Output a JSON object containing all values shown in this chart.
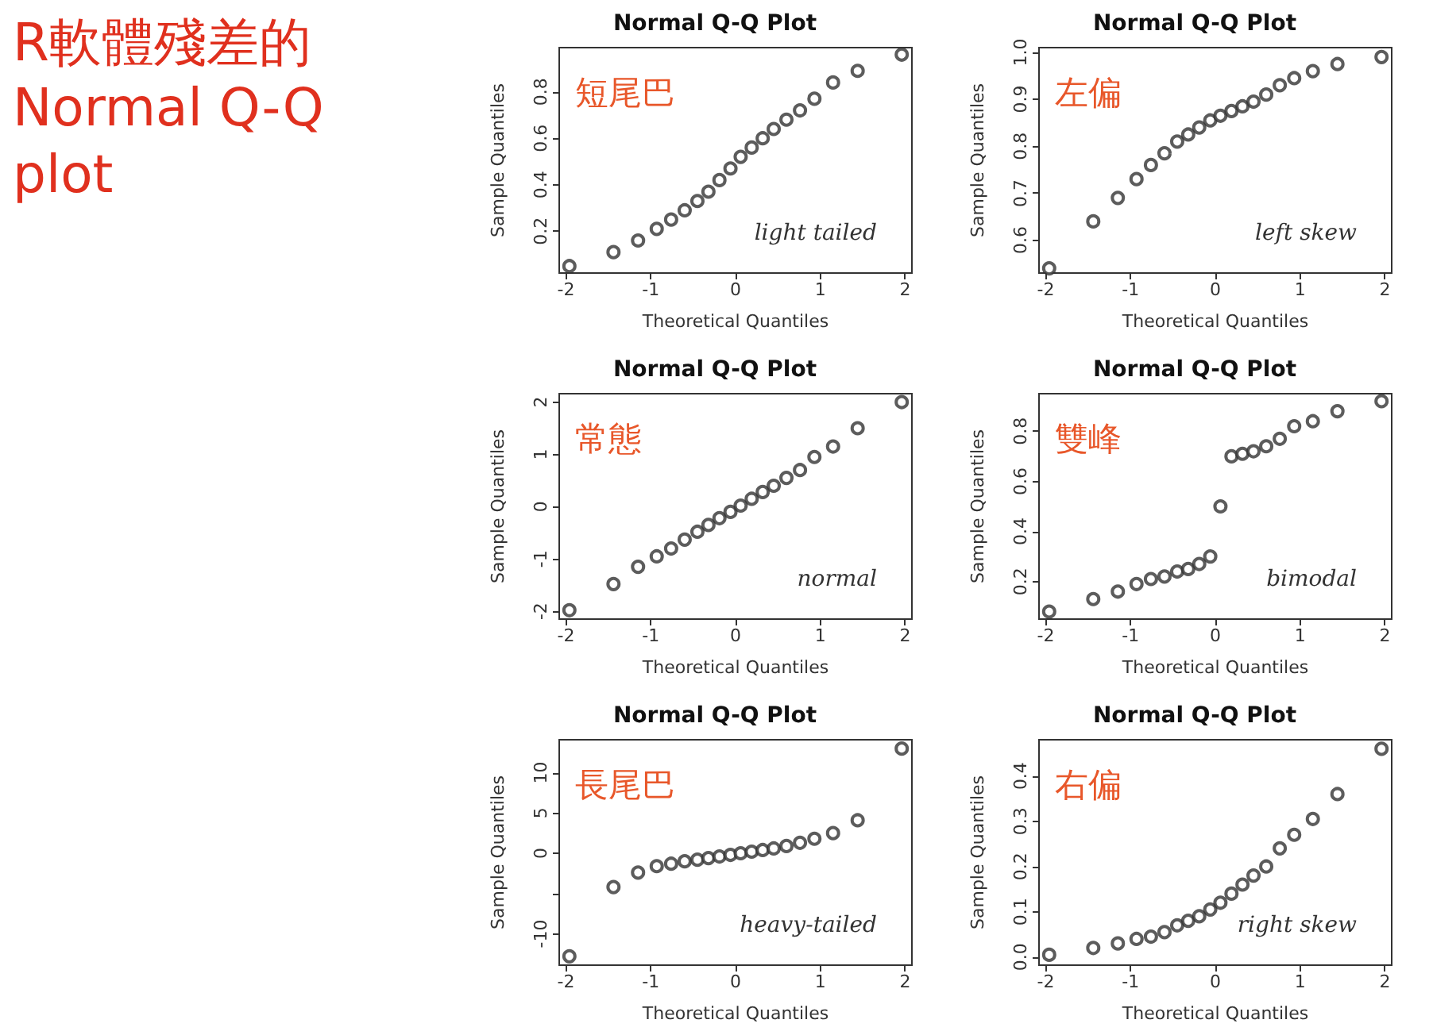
{
  "chart_data": [
    {
      "type": "other",
      "title": "R軟體殘差的 Normal Q-Q plot"
    },
    {
      "type": "scatter",
      "title": "Normal Q-Q Plot",
      "xlabel": "Theoretical Quantiles",
      "ylabel": "Sample Quantiles",
      "annotations": [
        "短尾巴",
        "light tailed"
      ],
      "marker": "circle",
      "xlim": [
        -2.08,
        2.08
      ],
      "xticks": [
        -2,
        -1,
        0,
        1,
        2
      ],
      "ylim": [
        0.02,
        0.99
      ],
      "yticks": [
        0.2,
        0.4,
        0.6,
        0.8
      ],
      "x": [
        -1.96,
        -1.44,
        -1.15,
        -0.93,
        -0.76,
        -0.6,
        -0.45,
        -0.32,
        -0.19,
        -0.06,
        0.06,
        0.19,
        0.32,
        0.45,
        0.6,
        0.76,
        0.93,
        1.15,
        1.44,
        1.96
      ],
      "series": [
        {
          "color": "#333333",
          "values": [
            0.05,
            0.11,
            0.16,
            0.21,
            0.25,
            0.29,
            0.33,
            0.37,
            0.42,
            0.47,
            0.52,
            0.56,
            0.6,
            0.64,
            0.68,
            0.72,
            0.77,
            0.84,
            0.89,
            0.96
          ]
        }
      ]
    },
    {
      "type": "scatter",
      "title": "Normal Q-Q Plot",
      "xlabel": "Theoretical Quantiles",
      "ylabel": "Sample Quantiles",
      "annotations": [
        "左偏",
        "left skew"
      ],
      "marker": "circle",
      "xlim": [
        -2.08,
        2.08
      ],
      "xticks": [
        -2,
        -1,
        0,
        1,
        2
      ],
      "ylim": [
        0.53,
        1.01
      ],
      "yticks": [
        0.6,
        0.7,
        0.8,
        0.9,
        {
          "value": 1,
          "label": "1.0"
        }
      ],
      "x": [
        -1.96,
        -1.44,
        -1.15,
        -0.93,
        -0.76,
        -0.6,
        -0.45,
        -0.32,
        -0.19,
        -0.06,
        0.06,
        0.19,
        0.32,
        0.45,
        0.6,
        0.76,
        0.93,
        1.15,
        1.44,
        1.96
      ],
      "series": [
        {
          "color": "#333333",
          "values": [
            0.54,
            0.64,
            0.69,
            0.73,
            0.76,
            0.785,
            0.81,
            0.825,
            0.84,
            0.855,
            0.865,
            0.875,
            0.885,
            0.895,
            0.91,
            0.93,
            0.945,
            0.96,
            0.975,
            0.99
          ]
        }
      ]
    },
    {
      "type": "scatter",
      "title": "Normal Q-Q Plot",
      "xlabel": "Theoretical Quantiles",
      "ylabel": "Sample Quantiles",
      "annotations": [
        "常態",
        "normal"
      ],
      "marker": "circle",
      "xlim": [
        -2.08,
        2.08
      ],
      "xticks": [
        -2,
        -1,
        0,
        1,
        2
      ],
      "ylim": [
        -2.15,
        2.16
      ],
      "yticks": [
        -2,
        -1,
        0,
        1,
        2
      ],
      "x": [
        -1.96,
        -1.44,
        -1.15,
        -0.93,
        -0.76,
        -0.6,
        -0.45,
        -0.32,
        -0.19,
        -0.06,
        0.06,
        0.19,
        0.32,
        0.45,
        0.6,
        0.76,
        0.93,
        1.15,
        1.44,
        1.96
      ],
      "series": [
        {
          "color": "#333333",
          "values": [
            -1.98,
            -1.48,
            -1.15,
            -0.95,
            -0.8,
            -0.63,
            -0.48,
            -0.35,
            -0.22,
            -0.1,
            0.02,
            0.15,
            0.28,
            0.4,
            0.55,
            0.7,
            0.95,
            1.15,
            1.5,
            2
          ]
        }
      ]
    },
    {
      "type": "scatter",
      "title": "Normal Q-Q Plot",
      "xlabel": "Theoretical Quantiles",
      "ylabel": "Sample Quantiles",
      "annotations": [
        "雙峰",
        "bimodal"
      ],
      "marker": "circle",
      "xlim": [
        -2.08,
        2.08
      ],
      "xticks": [
        -2,
        -1,
        0,
        1,
        2
      ],
      "ylim": [
        0.05,
        0.95
      ],
      "yticks": [
        0.2,
        0.4,
        0.6,
        0.8
      ],
      "x": [
        -1.96,
        -1.44,
        -1.15,
        -0.93,
        -0.76,
        -0.6,
        -0.45,
        -0.32,
        -0.19,
        -0.06,
        0.06,
        0.19,
        0.32,
        0.45,
        0.6,
        0.76,
        0.93,
        1.15,
        1.44,
        1.96
      ],
      "series": [
        {
          "color": "#333333",
          "values": [
            0.08,
            0.13,
            0.16,
            0.19,
            0.21,
            0.22,
            0.24,
            0.25,
            0.27,
            0.3,
            0.5,
            0.7,
            0.71,
            0.72,
            0.74,
            0.77,
            0.82,
            0.84,
            0.88,
            0.92
          ]
        }
      ]
    },
    {
      "type": "scatter",
      "title": "Normal Q-Q Plot",
      "xlabel": "Theoretical Quantiles",
      "ylabel": "Sample Quantiles",
      "annotations": [
        "長尾巴",
        "heavy-tailed"
      ],
      "marker": "circle",
      "xlim": [
        -2.08,
        2.08
      ],
      "xticks": [
        -2,
        -1,
        0,
        1,
        2
      ],
      "ylim": [
        -13.9,
        14.1
      ],
      "yticks": [
        -10,
        {
          "value": -5,
          "label": null
        },
        0,
        5,
        10
      ],
      "x": [
        -1.96,
        -1.44,
        -1.15,
        -0.93,
        -0.76,
        -0.6,
        -0.45,
        -0.32,
        -0.19,
        -0.06,
        0.06,
        0.19,
        0.32,
        0.45,
        0.6,
        0.76,
        0.93,
        1.15,
        1.44,
        1.96
      ],
      "series": [
        {
          "color": "#333333",
          "values": [
            -12.8,
            -4.2,
            -2.4,
            -1.6,
            -1.3,
            -1,
            -0.8,
            -0.6,
            -0.4,
            -0.2,
            0,
            0.2,
            0.4,
            0.6,
            0.9,
            1.3,
            1.8,
            2.5,
            4.1,
            13
          ]
        }
      ]
    },
    {
      "type": "scatter",
      "title": "Normal Q-Q Plot",
      "xlabel": "Theoretical Quantiles",
      "ylabel": "Sample Quantiles",
      "annotations": [
        "右偏",
        "right skew"
      ],
      "marker": "circle",
      "xlim": [
        -2.08,
        2.08
      ],
      "xticks": [
        -2,
        -1,
        0,
        1,
        2
      ],
      "ylim": [
        -0.018,
        0.48
      ],
      "yticks": [
        {
          "value": 0,
          "label": "0.0"
        },
        0.1,
        0.2,
        0.3,
        0.4
      ],
      "x": [
        -1.96,
        -1.44,
        -1.15,
        -0.93,
        -0.76,
        -0.6,
        -0.45,
        -0.32,
        -0.19,
        -0.06,
        0.06,
        0.19,
        0.32,
        0.45,
        0.6,
        0.76,
        0.93,
        1.15,
        1.44,
        1.96
      ],
      "series": [
        {
          "color": "#333333",
          "values": [
            0.005,
            0.02,
            0.03,
            0.04,
            0.045,
            0.055,
            0.07,
            0.08,
            0.09,
            0.105,
            0.12,
            0.14,
            0.16,
            0.18,
            0.2,
            0.24,
            0.27,
            0.305,
            0.36,
            0.46
          ]
        }
      ]
    }
  ]
}
